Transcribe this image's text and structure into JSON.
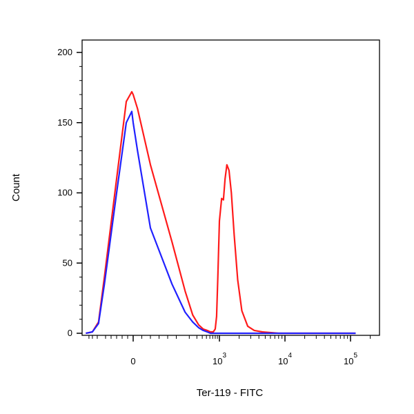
{
  "chart_data": {
    "type": "line",
    "xlabel": "Ter-119 - FITC",
    "ylabel": "Count",
    "x_scale": "biexponential",
    "ylim": [
      0,
      205
    ],
    "grid": false,
    "legend": "none",
    "y_ticks": [
      0,
      50,
      100,
      150,
      200
    ],
    "x_ticks": [
      {
        "value": 0,
        "base": "0",
        "exp": ""
      },
      {
        "value": 1000,
        "base": "10",
        "exp": "3"
      },
      {
        "value": 10000,
        "base": "10",
        "exp": "4"
      },
      {
        "value": 100000,
        "base": "10",
        "exp": "5"
      }
    ],
    "series": [
      {
        "color": "#ff1a1a",
        "x": [
          -520,
          -300,
          -180,
          -110,
          -60,
          -25,
          -5,
          0,
          10,
          40,
          90,
          160,
          240,
          330,
          420,
          520,
          620,
          720,
          800,
          860,
          920,
          1000,
          1080,
          1150,
          1220,
          1300,
          1400,
          1520,
          1680,
          1900,
          2200,
          2700,
          3400,
          4500,
          8000,
          30000,
          120000
        ],
        "y": [
          0,
          1,
          8,
          40,
          110,
          165,
          172,
          170,
          160,
          120,
          65,
          30,
          13,
          6,
          3,
          2,
          1,
          1,
          3,
          12,
          40,
          80,
          96,
          95,
          110,
          120,
          116,
          100,
          70,
          38,
          16,
          5,
          2,
          1,
          0,
          0,
          0
        ]
      },
      {
        "color": "#2020ff",
        "x": [
          -520,
          -300,
          -180,
          -110,
          -60,
          -25,
          -5,
          0,
          10,
          40,
          90,
          160,
          240,
          330,
          420,
          520,
          620,
          800,
          1500,
          5000,
          120000
        ],
        "y": [
          0,
          1,
          7,
          35,
          100,
          150,
          158,
          150,
          130,
          75,
          35,
          15,
          8,
          4,
          2,
          1,
          0,
          0,
          0,
          0,
          0
        ]
      }
    ]
  }
}
